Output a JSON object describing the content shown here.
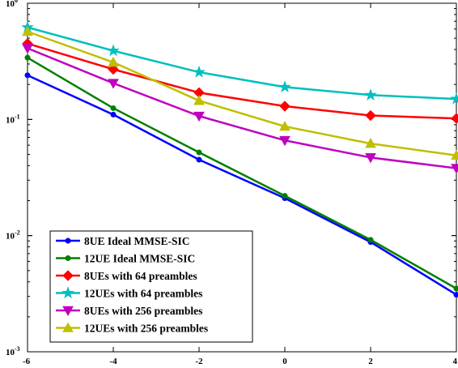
{
  "chart_data": {
    "type": "line",
    "title": "",
    "xlabel": "",
    "ylabel": "",
    "x": [
      -6,
      -4,
      -2,
      0,
      2,
      4
    ],
    "xlim": [
      -6,
      4
    ],
    "ylim": [
      0.001,
      1
    ],
    "yscale": "log",
    "grid": false,
    "legend_position": "bottom-left",
    "x_tick_labels": [
      "-6",
      "-4",
      "-2",
      "0",
      "2",
      "4"
    ],
    "y_tick_labels": [
      {
        "base": "10",
        "exp": "-3"
      },
      {
        "base": "10",
        "exp": "-2"
      },
      {
        "base": "10",
        "exp": "-1"
      },
      {
        "base": "10",
        "exp": "0"
      }
    ],
    "series": [
      {
        "name": "8UE Ideal MMSE-SIC",
        "color": "#0000ff",
        "marker": "dot",
        "values": [
          0.24,
          0.11,
          0.045,
          0.021,
          0.0088,
          0.0031
        ]
      },
      {
        "name": "12UE Ideal MMSE-SIC",
        "color": "#008000",
        "marker": "dot",
        "values": [
          0.34,
          0.125,
          0.052,
          0.022,
          0.0092,
          0.0035
        ]
      },
      {
        "name": "8UEs with 64 preambles",
        "color": "#ff0000",
        "marker": "diamond",
        "values": [
          0.45,
          0.27,
          0.17,
          0.13,
          0.108,
          0.102
        ]
      },
      {
        "name": "12UEs with 64 preambles",
        "color": "#00bfbf",
        "marker": "star",
        "values": [
          0.62,
          0.39,
          0.255,
          0.19,
          0.162,
          0.15
        ]
      },
      {
        "name": "8UEs with 256 preambles",
        "color": "#bf00bf",
        "marker": "triangle-down",
        "values": [
          0.41,
          0.205,
          0.107,
          0.066,
          0.047,
          0.038
        ]
      },
      {
        "name": "12UEs with 256 preambles",
        "color": "#bfbf00",
        "marker": "triangle-up",
        "values": [
          0.57,
          0.31,
          0.145,
          0.087,
          0.062,
          0.049
        ]
      }
    ]
  }
}
